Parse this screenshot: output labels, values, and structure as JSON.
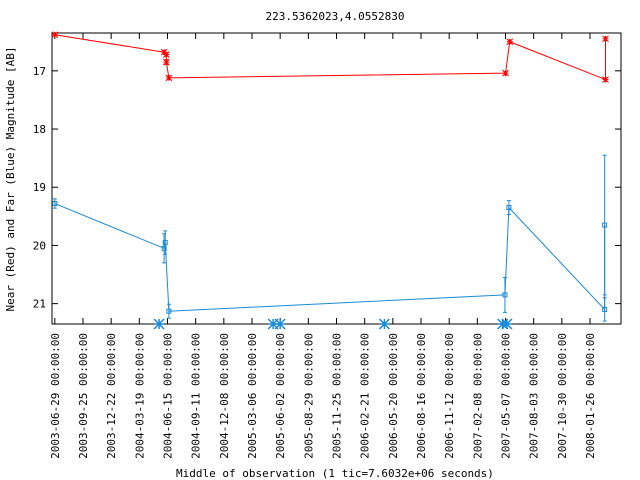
{
  "chart_data": {
    "type": "line",
    "title": "223.5362023,4.0552830",
    "xlabel": "Middle of observation (1 tic=7.6032e+06 seconds)",
    "ylabel": "Near (Red) and Far (Blue) Magnitude [AB]",
    "x_tick_labels": [
      "2003-06-29 00:00:00",
      "2003-09-25 00:00:00",
      "2003-12-22 00:00:00",
      "2004-03-19 00:00:00",
      "2004-06-15 00:00:00",
      "2004-09-11 00:00:00",
      "2004-12-08 00:00:00",
      "2005-03-06 00:00:00",
      "2005-06-02 00:00:00",
      "2005-08-29 00:00:00",
      "2005-11-25 00:00:00",
      "2006-02-21 00:00:00",
      "2006-05-20 00:00:00",
      "2006-08-16 00:00:00",
      "2006-11-12 00:00:00",
      "2007-02-08 00:00:00",
      "2007-05-07 00:00:00",
      "2007-08-03 00:00:00",
      "2007-10-30 00:00:00",
      "2008-01-26 00:00:00"
    ],
    "y_ticks": [
      17,
      18,
      19,
      20,
      21
    ],
    "ylim_inverted": [
      16.35,
      21.35
    ],
    "xlim_tics": [
      -0.1,
      20.1
    ],
    "grid": false,
    "legend": "none",
    "series": [
      {
        "color": "#ff0000",
        "marker": "star",
        "points": [
          {
            "x": 0.0,
            "y": 16.38,
            "err": 0.02
          },
          {
            "x": 3.88,
            "y": 16.68,
            "err": 0.03
          },
          {
            "x": 3.96,
            "y": 16.72,
            "err": 0.03
          },
          {
            "x": 3.96,
            "y": 16.85,
            "err": 0.04
          },
          {
            "x": 4.05,
            "y": 17.12,
            "err": 0.03
          },
          {
            "x": 16.0,
            "y": 17.04,
            "err": 0.03
          },
          {
            "x": 16.15,
            "y": 16.5,
            "err": 0.03
          },
          {
            "x": 19.55,
            "y": 17.15,
            "err": 0.03
          },
          {
            "x": 19.55,
            "y": 16.45,
            "err": 0.03
          }
        ]
      },
      {
        "color": "#1a8ad4",
        "marker": "square",
        "points": [
          {
            "x": 0.0,
            "y": 19.28,
            "err": 0.08
          },
          {
            "x": 3.88,
            "y": 20.05,
            "err": 0.25
          },
          {
            "x": 3.92,
            "y": 19.95,
            "err": 0.2
          },
          {
            "x": 4.05,
            "y": 21.13,
            "err": 0.12
          },
          {
            "x": 15.98,
            "y": 20.85,
            "err": 0.3
          },
          {
            "x": 16.12,
            "y": 19.35,
            "err": 0.12
          },
          {
            "x": 19.52,
            "y": 21.1,
            "err": 0.2
          },
          {
            "x": 19.52,
            "y": 19.65,
            "err": 1.2
          }
        ]
      }
    ],
    "bottom_markers": {
      "color": "#1a8ad4",
      "marker": "asterisk",
      "y": 21.35,
      "x": [
        3.7,
        7.75,
        8.0,
        11.7,
        15.9,
        16.05
      ]
    }
  }
}
